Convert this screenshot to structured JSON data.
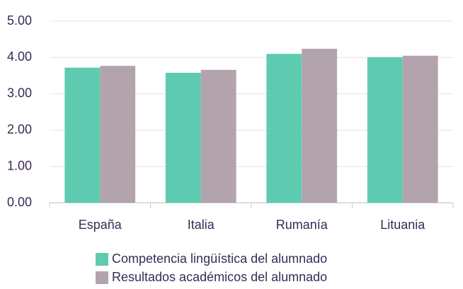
{
  "chart_data": {
    "type": "bar",
    "categories": [
      "España",
      "Italia",
      "Rumanía",
      "Lituania"
    ],
    "series": [
      {
        "name": "Competencia lingüística del alumnado",
        "color": "#5ecbb0",
        "values": [
          3.72,
          3.58,
          4.1,
          4.01
        ]
      },
      {
        "name": "Resultados académicos del alumnado",
        "color": "#b3a3ad",
        "values": [
          3.77,
          3.66,
          4.24,
          4.05
        ]
      }
    ],
    "ylim": [
      0,
      5
    ],
    "yticks": [
      {
        "value": 0,
        "label": "0.00"
      },
      {
        "value": 1,
        "label": "1.00"
      },
      {
        "value": 2,
        "label": "2.00"
      },
      {
        "value": 3,
        "label": "3.00"
      },
      {
        "value": 4,
        "label": "4.00"
      },
      {
        "value": 5,
        "label": "5.00"
      }
    ],
    "grid": true
  }
}
